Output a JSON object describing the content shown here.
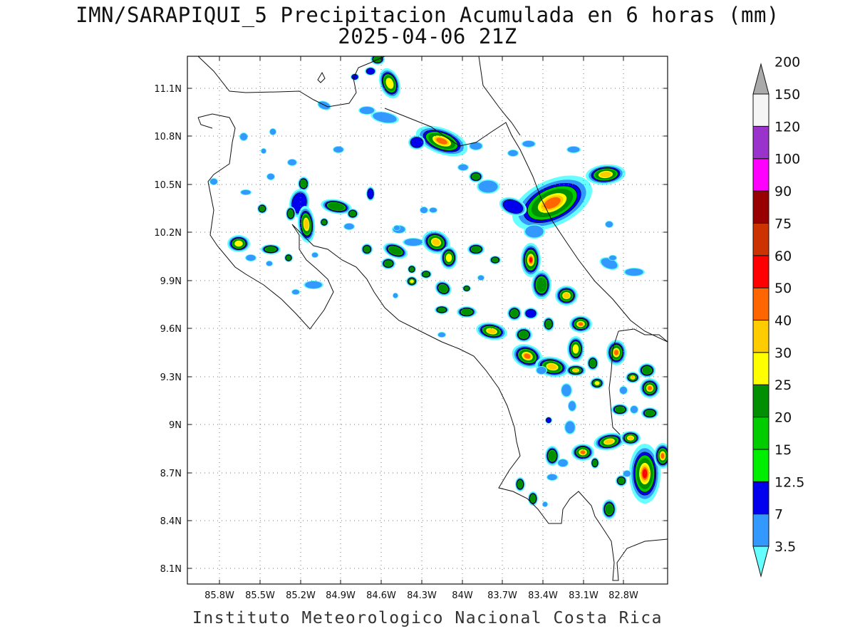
{
  "title_line1": "IMN/SARAPIQUI_5 Precipitacion Acumulada en 6 horas (mm)",
  "title_line2": "2025-04-06 21Z",
  "footer": "Instituto Meteorologico Nacional Costa Rica",
  "map": {
    "lon_ticks": [
      "85.8W",
      "85.5W",
      "85.2W",
      "84.9W",
      "84.6W",
      "84.3W",
      "84W",
      "83.7W",
      "83.4W",
      "83.1W",
      "82.8W"
    ],
    "lat_ticks": [
      "11.1N",
      "10.8N",
      "10.5N",
      "10.2N",
      "9.9N",
      "9.6N",
      "9.3N",
      "9N",
      "8.7N",
      "8.4N",
      "8.1N"
    ],
    "grid": true
  },
  "colorbar": {
    "levels": [
      "3.5",
      "7",
      "12.5",
      "15",
      "20",
      "25",
      "30",
      "40",
      "50",
      "60",
      "75",
      "90",
      "100",
      "120",
      "150",
      "200"
    ],
    "colors": [
      "#66ffff",
      "#3399ff",
      "#0000ee",
      "#00ee00",
      "#00cc00",
      "#008f00",
      "#ffff00",
      "#ffcc00",
      "#ff6600",
      "#ff0000",
      "#cc3300",
      "#990000",
      "#ff00ff",
      "#9933cc",
      "#f5f5f5",
      "#aaaaaa"
    ]
  }
}
